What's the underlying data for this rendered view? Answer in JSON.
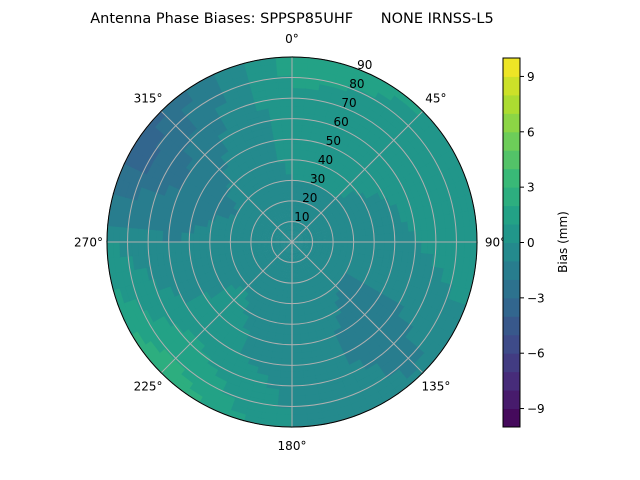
{
  "chart_data": {
    "type": "heatmap",
    "subtype": "polar-filled-contour",
    "title": "Antenna Phase Biases: SPPSP85UHF      NONE IRNSS-L5",
    "colorbar": {
      "label": "Bias (mm)",
      "range": [
        -10,
        10
      ],
      "levels_step": 1,
      "ticks": [
        -9,
        -6,
        -3,
        0,
        3,
        6,
        9
      ],
      "tick_labels": [
        "−9",
        "−6",
        "−3",
        "0",
        "3",
        "6",
        "9"
      ],
      "colormap": "viridis"
    },
    "angular_axis": {
      "direction": "clockwise",
      "zero_location": "top",
      "tick_labels": [
        "0°",
        "45°",
        "90°",
        "135°",
        "180°",
        "225°",
        "270°",
        "315°"
      ],
      "ticks": [
        0,
        45,
        90,
        135,
        180,
        225,
        270,
        315
      ]
    },
    "radial_axis": {
      "range": [
        0,
        90
      ],
      "ticks": [
        10,
        20,
        30,
        40,
        50,
        60,
        70,
        80,
        90
      ],
      "tick_labels": [
        "10",
        "20",
        "30",
        "40",
        "50",
        "60",
        "70",
        "80",
        "90"
      ]
    },
    "grid": true,
    "approx_values": {
      "azimuths": [
        0,
        45,
        90,
        135,
        180,
        225,
        270,
        300,
        315
      ],
      "radii": [
        0,
        30,
        60,
        90
      ],
      "values_mm": [
        [
          -0.5,
          0.0,
          0.5,
          1.5
        ],
        [
          -0.5,
          0.0,
          0.5,
          1.0
        ],
        [
          -0.5,
          -1.0,
          0.0,
          1.0
        ],
        [
          -0.5,
          -1.0,
          -1.5,
          -1.0
        ],
        [
          -0.5,
          -0.5,
          -0.5,
          0.0
        ],
        [
          -0.5,
          0.0,
          0.5,
          3.0
        ],
        [
          -0.5,
          -0.5,
          -1.0,
          0.0
        ],
        [
          -0.5,
          -1.0,
          -2.0,
          -4.0
        ],
        [
          -0.5,
          -0.5,
          -1.5,
          -3.0
        ]
      ]
    }
  }
}
